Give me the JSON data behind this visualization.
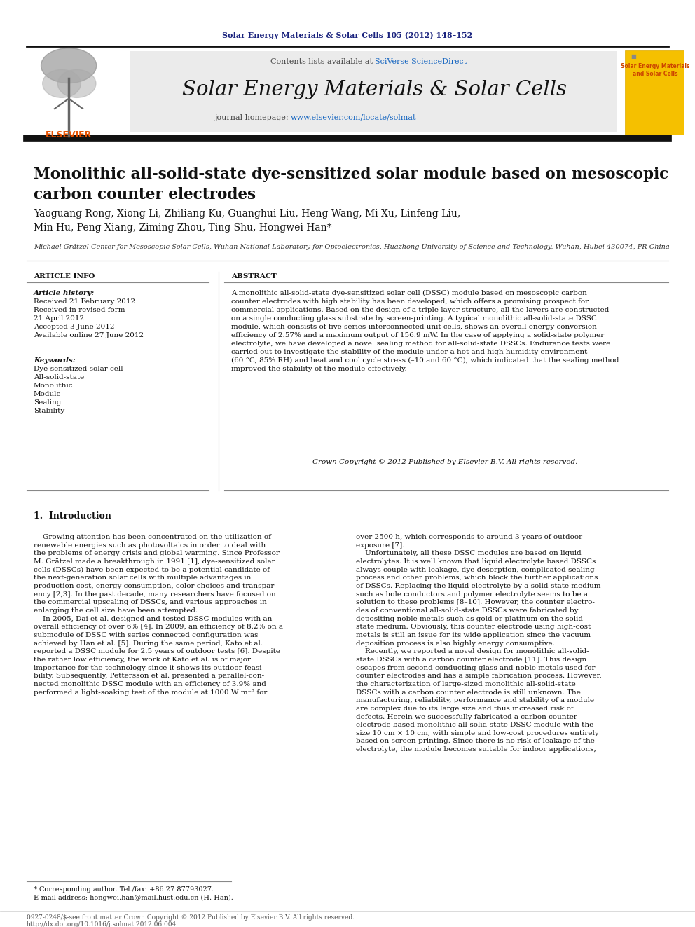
{
  "journal_ref": "Solar Energy Materials & Solar Cells 105 (2012) 148–152",
  "journal_name": "Solar Energy Materials & Solar Cells",
  "paper_title": "Monolithic all-solid-state dye-sensitized solar module based on mesoscopic\ncarbon counter electrodes",
  "authors": "Yaoguang Rong, Xiong Li, Zhiliang Ku, Guanghui Liu, Heng Wang, Mi Xu, Linfeng Liu,\nMin Hu, Peng Xiang, Ziming Zhou, Ting Shu, Hongwei Han*",
  "affiliation": "Michael Grätzel Center for Mesoscopic Solar Cells, Wuhan National Laboratory for Optoelectronics, Huazhong University of Science and Technology, Wuhan, Hubei 430074, PR China",
  "article_info_label": "ARTICLE INFO",
  "abstract_label": "ABSTRACT",
  "article_history_label": "Article history:",
  "article_history": "Received 21 February 2012\nReceived in revised form\n21 April 2012\nAccepted 3 June 2012\nAvailable online 27 June 2012",
  "keywords_label": "Keywords:",
  "keywords": "Dye-sensitized solar cell\nAll-solid-state\nMonolithic\nModule\nSealing\nStability",
  "abstract_text": "A monolithic all-solid-state dye-sensitized solar cell (DSSC) module based on mesoscopic carbon\ncounter electrodes with high stability has been developed, which offers a promising prospect for\ncommercial applications. Based on the design of a triple layer structure, all the layers are constructed\non a single conducting glass substrate by screen-printing. A typical monolithic all-solid-state DSSC\nmodule, which consists of five series-interconnected unit cells, shows an overall energy conversion\nefficiency of 2.57% and a maximum output of 156.9 mW. In the case of applying a solid-state polymer\nelectrolyte, we have developed a novel sealing method for all-solid-state DSSCs. Endurance tests were\ncarried out to investigate the stability of the module under a hot and high humidity environment\n(60 °C, 85% RH) and heat and cool cycle stress (–10 and 60 °C), which indicated that the sealing method\nimproved the stability of the module effectively.",
  "copyright_text": "Crown Copyright © 2012 Published by Elsevier B.V. All rights reserved.",
  "intro_heading": "1.  Introduction",
  "intro_col1": "    Growing attention has been concentrated on the utilization of\nrenewable energies such as photovoltaics in order to deal with\nthe problems of energy crisis and global warming. Since Professor\nM. Grätzel made a breakthrough in 1991 [1], dye-sensitized solar\ncells (DSSCs) have been expected to be a potential candidate of\nthe next-generation solar cells with multiple advantages in\nproduction cost, energy consumption, color choices and transpar-\nency [2,3]. In the past decade, many researchers have focused on\nthe commercial upscaling of DSSCs, and various approaches in\nenlarging the cell size have been attempted.\n    In 2005, Dai et al. designed and tested DSSC modules with an\noverall efficiency of over 6% [4]. In 2009, an efficiency of 8.2% on a\nsubmodule of DSSC with series connected configuration was\nachieved by Han et al. [5]. During the same period, Kato et al.\nreported a DSSC module for 2.5 years of outdoor tests [6]. Despite\nthe rather low efficiency, the work of Kato et al. is of major\nimportance for the technology since it shows its outdoor feasi-\nbility. Subsequently, Pettersson et al. presented a parallel-con-\nnected monolithic DSSC module with an efficiency of 3.9% and\nperformed a light-soaking test of the module at 1000 W m⁻² for",
  "intro_col2": "over 2500 h, which corresponds to around 3 years of outdoor\nexposure [7].\n    Unfortunately, all these DSSC modules are based on liquid\nelectrolytes. It is well known that liquid electrolyte based DSSCs\nalways couple with leakage, dye desorption, complicated sealing\nprocess and other problems, which block the further applications\nof DSSCs. Replacing the liquid electrolyte by a solid-state medium\nsuch as hole conductors and polymer electrolyte seems to be a\nsolution to these problems [8–10]. However, the counter electro-\ndes of conventional all-solid-state DSSCs were fabricated by\ndepositing noble metals such as gold or platinum on the solid-\nstate medium. Obviously, this counter electrode using high-cost\nmetals is still an issue for its wide application since the vacuum\ndeposition process is also highly energy consumptive.\n    Recently, we reported a novel design for monolithic all-solid-\nstate DSSCs with a carbon counter electrode [11]. This design\nescapes from second conducting glass and noble metals used for\ncounter electrodes and has a simple fabrication process. However,\nthe characterization of large-sized monolithic all-solid-state\nDSSCs with a carbon counter electrode is still unknown. The\nmanufacturing, reliability, performance and stability of a module\nare complex due to its large size and thus increased risk of\ndefects. Herein we successfully fabricated a carbon counter\nelectrode based monolithic all-solid-state DSSC module with the\nsize 10 cm × 10 cm, with simple and low-cost procedures entirely\nbased on screen-printing. Since there is no risk of leakage of the\nelectrolyte, the module becomes suitable for indoor applications,",
  "footnote1": "* Corresponding author. Tel./fax: +86 27 87793027.",
  "footnote2": "E-mail address: hongwei.han@mail.hust.edu.cn (H. Han).",
  "footnote3": "0927-0248/$-see front matter Crown Copyright © 2012 Published by Elsevier B.V. All rights reserved.",
  "footnote4": "http://dx.doi.org/10.1016/j.solmat.2012.06.004",
  "bg_color": "#ffffff",
  "journal_ref_color": "#1a237e",
  "link_color": "#1565c0",
  "orange_color": "#e65100"
}
